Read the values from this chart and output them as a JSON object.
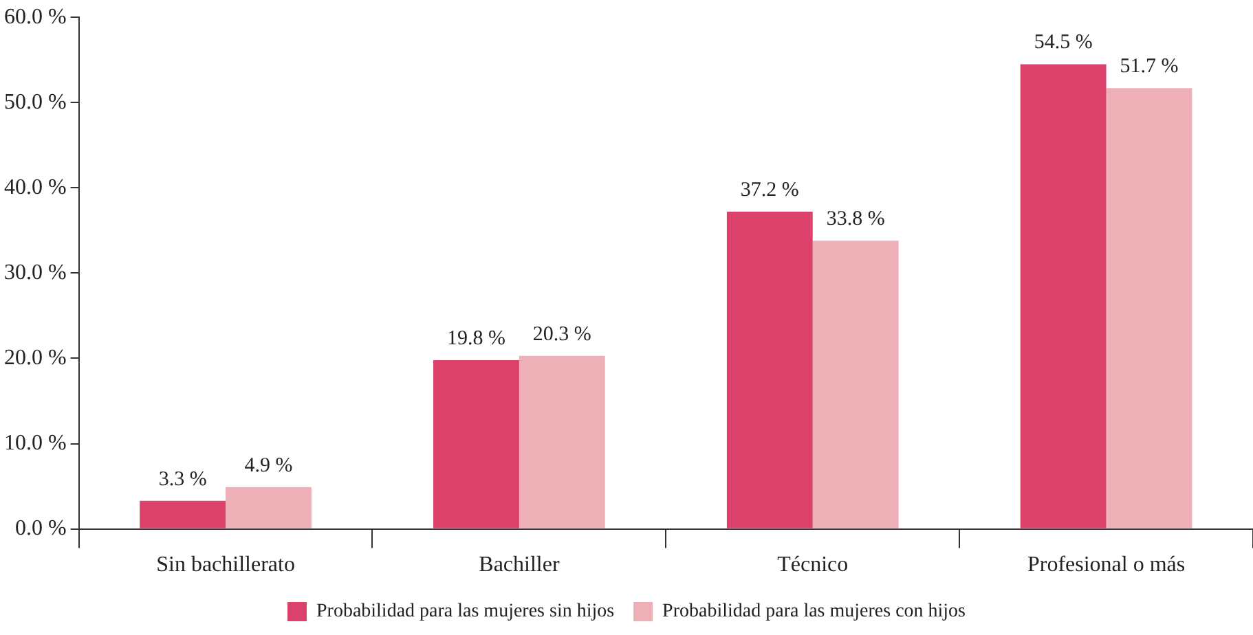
{
  "chart_data": {
    "type": "bar",
    "categories": [
      "Sin bachillerato",
      "Bachiller",
      "Técnico",
      "Profesional o más"
    ],
    "series": [
      {
        "name": "Probabilidad para las mujeres sin hijos",
        "color": "#dc416b",
        "values": [
          3.3,
          19.8,
          37.2,
          54.5
        ],
        "value_labels": [
          "3.3 %",
          "19.8 %",
          "37.2 %",
          "54.5 %"
        ]
      },
      {
        "name": "Probabilidad para las mujeres con hijos",
        "color": "#ecb0b6",
        "values": [
          4.9,
          20.3,
          33.8,
          51.7
        ],
        "value_labels": [
          "4.9 %",
          "20.3 %",
          "33.8 %",
          "51.7 %"
        ]
      }
    ],
    "ylim": [
      0,
      60
    ],
    "yticks": [
      {
        "value": 0,
        "label": "0.0 %"
      },
      {
        "value": 10,
        "label": "10.0 %"
      },
      {
        "value": 20,
        "label": "20.0 %"
      },
      {
        "value": 30,
        "label": "30.0 %"
      },
      {
        "value": 40,
        "label": "40.0 %"
      },
      {
        "value": 50,
        "label": "50.0 %"
      },
      {
        "value": 60,
        "label": "60.0 %"
      }
    ],
    "grid": false,
    "legend": "bottom"
  }
}
